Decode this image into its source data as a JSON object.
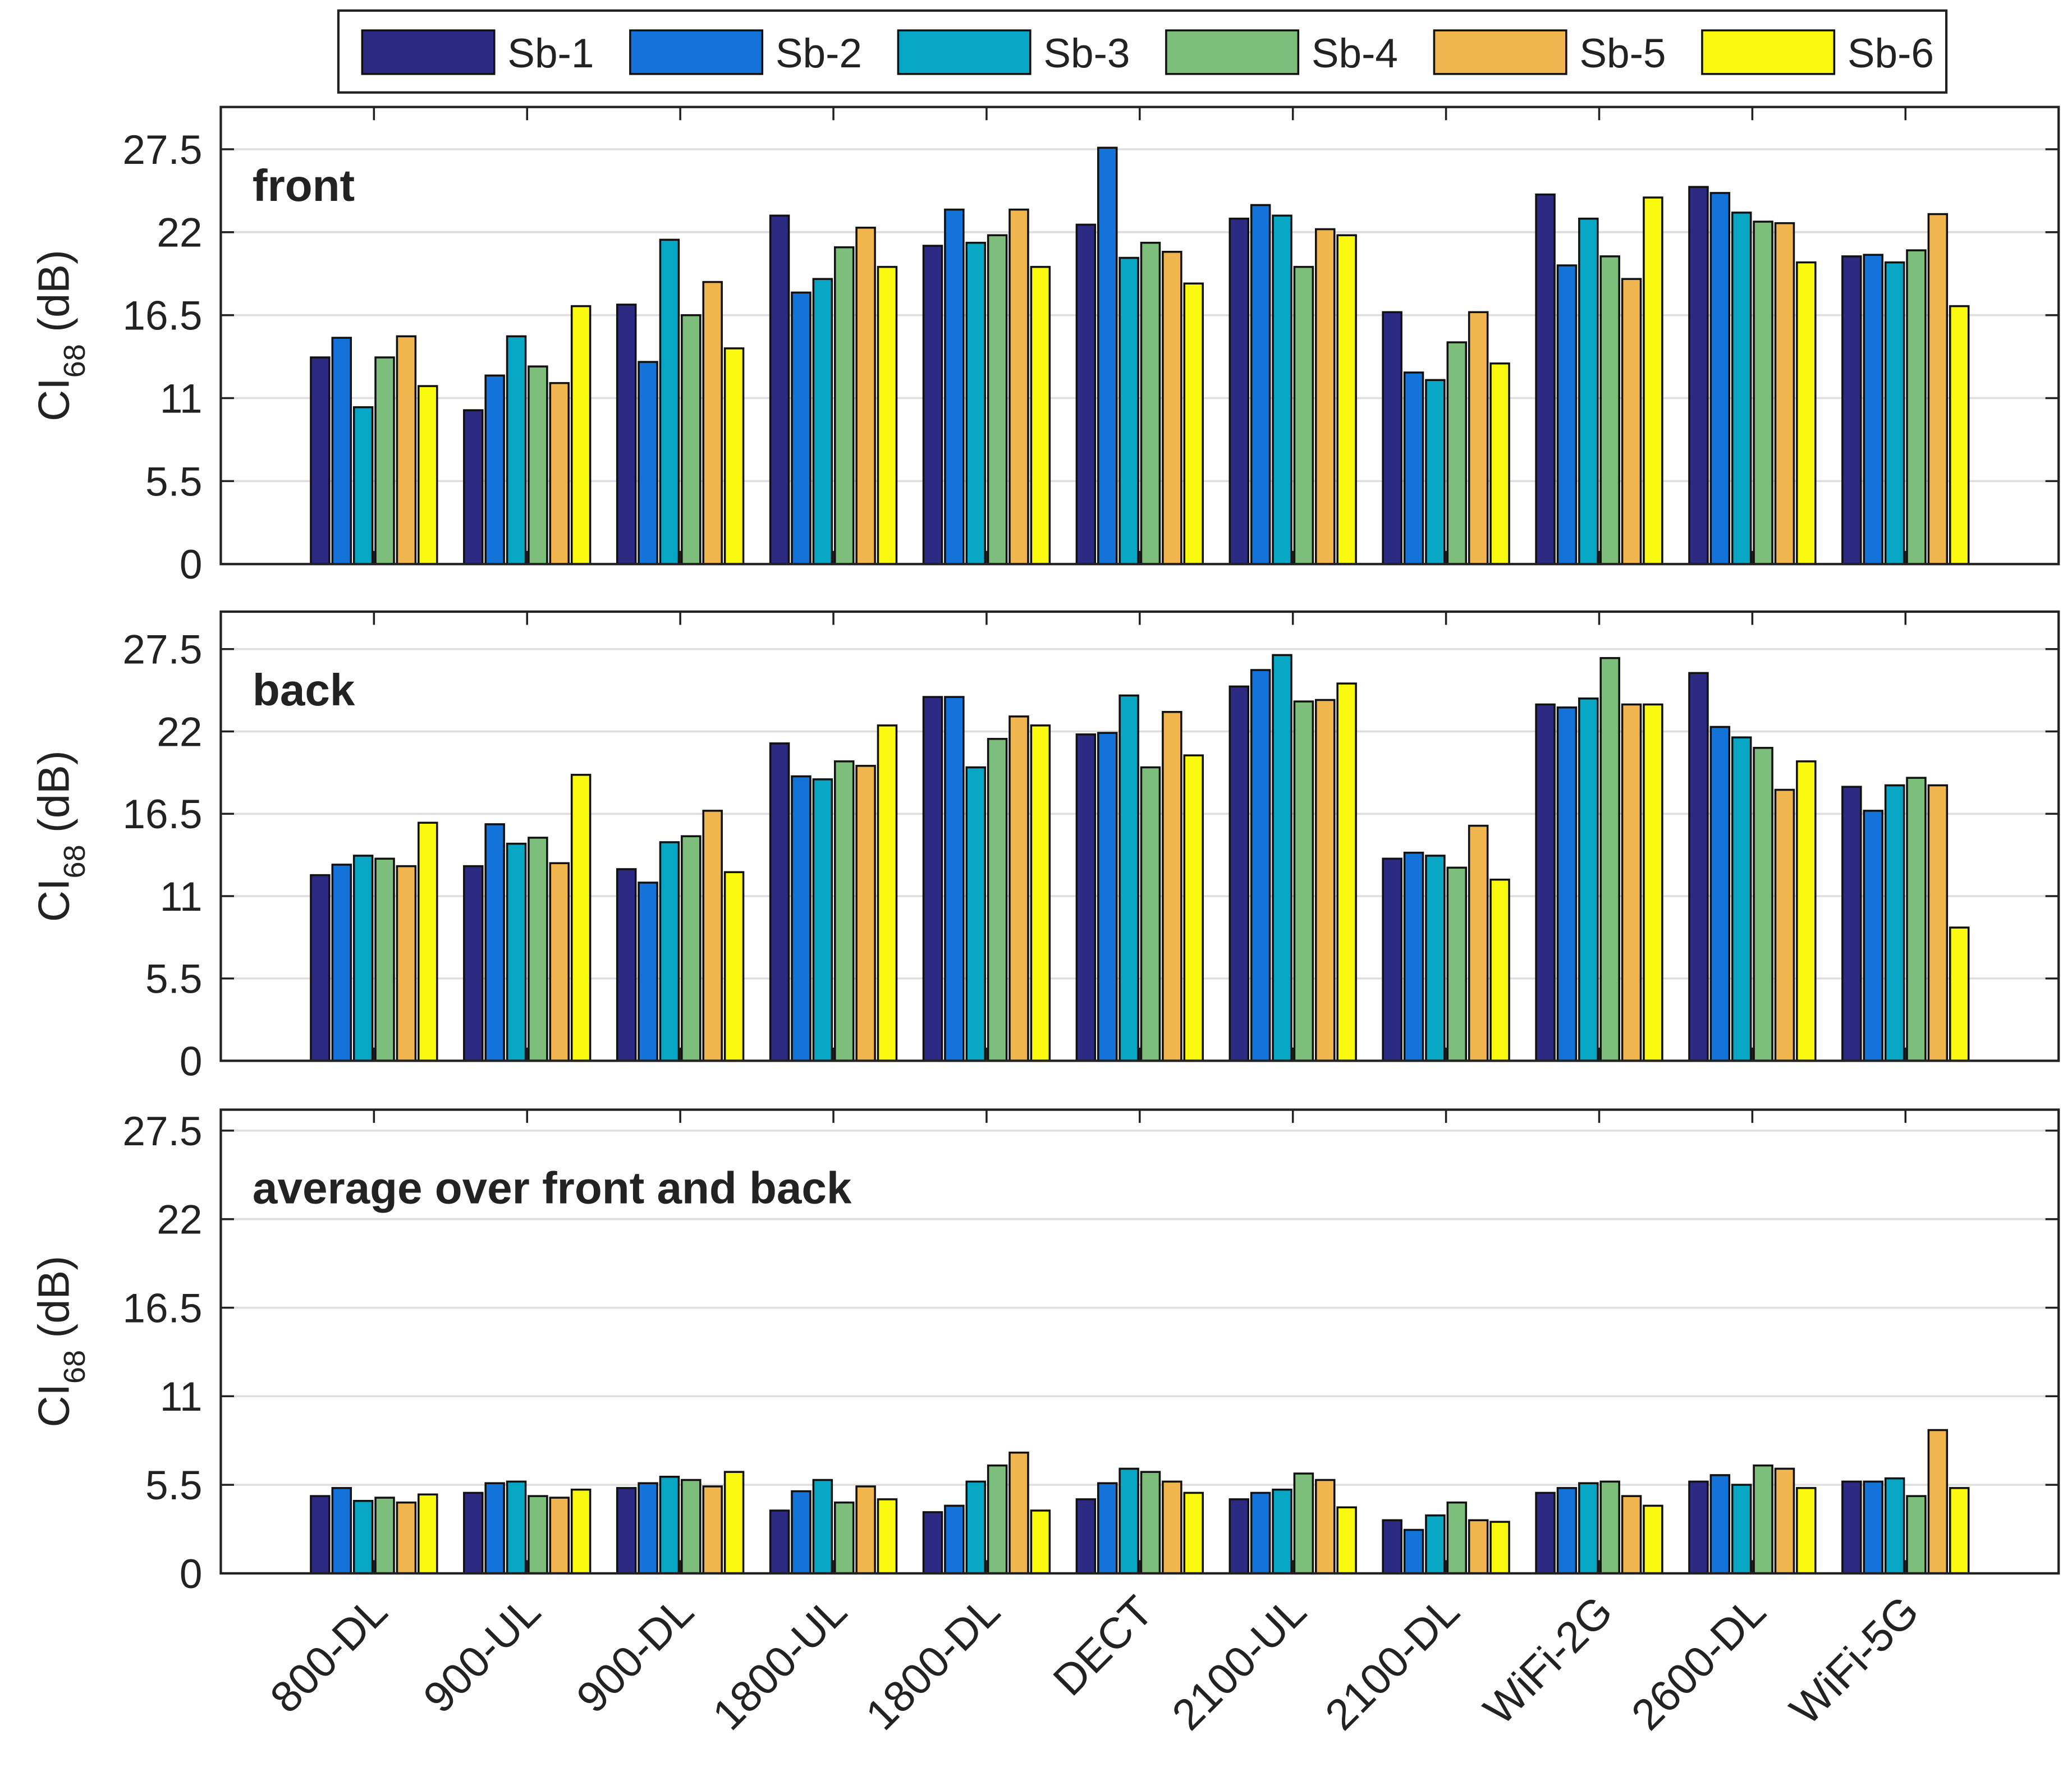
{
  "chart_data": [
    {
      "type": "bar",
      "annotation": "front",
      "y_label": "CI",
      "y_label_subscript": "68",
      "y_label_unit": "(dB)",
      "ylim": [
        0,
        30.3
      ],
      "yticks": [
        0,
        5.5,
        11,
        16.5,
        22,
        27.5
      ],
      "grid": true,
      "legend": "top",
      "series": [
        {
          "name": "Sb-1",
          "color": "#2d2a84",
          "values": [
            13.7,
            10.2,
            17.2,
            23.1,
            21.1,
            22.5,
            22.9,
            16.7,
            24.5,
            25.0,
            20.4
          ]
        },
        {
          "name": "Sb-2",
          "color": "#1373d8",
          "values": [
            15.0,
            12.5,
            13.4,
            18.0,
            23.5,
            27.6,
            23.8,
            12.7,
            19.8,
            24.6,
            20.5
          ]
        },
        {
          "name": "Sb-3",
          "color": "#06a6c4",
          "values": [
            10.4,
            15.1,
            21.5,
            18.9,
            21.3,
            20.3,
            23.1,
            12.2,
            22.9,
            23.3,
            20.0
          ]
        },
        {
          "name": "Sb-4",
          "color": "#7dbe7c",
          "values": [
            13.7,
            13.1,
            16.5,
            21.0,
            21.8,
            21.3,
            19.7,
            14.7,
            20.4,
            22.7,
            20.8
          ]
        },
        {
          "name": "Sb-5",
          "color": "#f0b64d",
          "values": [
            15.1,
            12.0,
            18.7,
            22.3,
            23.5,
            20.7,
            22.2,
            16.7,
            18.9,
            22.6,
            23.2
          ]
        },
        {
          "name": "Sb-6",
          "color": "#f9f90f",
          "values": [
            11.8,
            17.1,
            14.3,
            19.7,
            19.7,
            18.6,
            21.8,
            13.3,
            24.3,
            20.0,
            17.1
          ]
        }
      ]
    },
    {
      "type": "bar",
      "annotation": "back",
      "y_label": "CI",
      "y_label_subscript": "68",
      "y_label_unit": "(dB)",
      "ylim": [
        0,
        30
      ],
      "yticks": [
        0,
        5.5,
        11,
        16.5,
        22,
        27.5
      ],
      "grid": true,
      "series": [
        {
          "color": "#2d2a84",
          "values": [
            12.4,
            13.0,
            12.8,
            21.2,
            24.3,
            21.8,
            25.0,
            13.5,
            23.8,
            25.9,
            18.3
          ]
        },
        {
          "color": "#1373d8",
          "values": [
            13.1,
            15.8,
            11.9,
            19.0,
            24.3,
            21.9,
            26.1,
            13.9,
            23.6,
            22.3,
            16.7
          ]
        },
        {
          "color": "#06a6c4",
          "values": [
            13.7,
            14.5,
            14.6,
            18.8,
            19.6,
            24.4,
            27.1,
            13.7,
            24.2,
            21.6,
            18.4
          ]
        },
        {
          "color": "#7dbe7c",
          "values": [
            13.5,
            14.9,
            15.0,
            20.0,
            21.5,
            19.6,
            24.0,
            12.9,
            26.9,
            20.9,
            18.9
          ]
        },
        {
          "color": "#f0b64d",
          "values": [
            13.0,
            13.2,
            16.7,
            19.7,
            23.0,
            23.3,
            24.1,
            15.7,
            23.8,
            18.1,
            18.4
          ]
        },
        {
          "color": "#f9f90f",
          "values": [
            15.9,
            19.1,
            12.6,
            22.4,
            22.4,
            20.4,
            25.2,
            12.1,
            23.8,
            20.0,
            8.9
          ]
        }
      ]
    },
    {
      "type": "bar",
      "annotation": "average over front and back",
      "y_label": "CI",
      "y_label_subscript": "68",
      "y_label_unit": "(dB)",
      "ylim": [
        0,
        28.8
      ],
      "yticks": [
        0,
        5.5,
        11,
        16.5,
        22,
        27.5
      ],
      "grid": true,
      "categories": [
        "800-DL",
        "900-UL",
        "900-DL",
        "1800-UL",
        "1800-DL",
        "DECT",
        "2100-UL",
        "2100-DL",
        "WiFi-2G",
        "2600-DL",
        "WiFi-5G"
      ],
      "series": [
        {
          "color": "#2d2a84",
          "values": [
            4.8,
            5.0,
            5.3,
            3.9,
            3.8,
            4.6,
            4.6,
            3.3,
            5.0,
            5.7,
            5.7
          ]
        },
        {
          "color": "#1373d8",
          "values": [
            5.3,
            5.6,
            5.6,
            5.1,
            4.2,
            5.6,
            5.0,
            2.7,
            5.3,
            6.1,
            5.7
          ]
        },
        {
          "color": "#06a6c4",
          "values": [
            4.5,
            5.7,
            6.0,
            5.8,
            5.7,
            6.5,
            5.2,
            3.6,
            5.6,
            5.5,
            5.9
          ]
        },
        {
          "color": "#7dbe7c",
          "values": [
            4.7,
            4.8,
            5.8,
            4.4,
            6.7,
            6.3,
            6.2,
            4.4,
            5.7,
            6.7,
            4.8
          ]
        },
        {
          "color": "#f0b64d",
          "values": [
            4.4,
            4.7,
            5.4,
            5.4,
            7.5,
            5.7,
            5.8,
            3.3,
            4.8,
            6.5,
            8.9
          ]
        },
        {
          "color": "#f9f90f",
          "values": [
            4.9,
            5.2,
            6.3,
            4.6,
            3.9,
            5.0,
            4.1,
            3.2,
            4.2,
            5.3,
            5.3
          ]
        }
      ]
    }
  ]
}
